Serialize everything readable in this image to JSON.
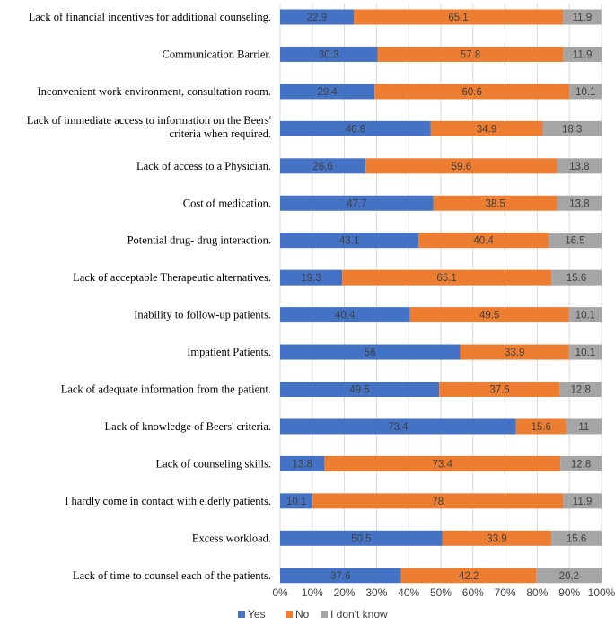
{
  "chart_data": {
    "type": "bar",
    "orientation": "horizontal",
    "stacked": "percent",
    "title": "",
    "xlabel": "",
    "ylabel": "",
    "xlim": [
      0,
      100
    ],
    "x_ticks": [
      "0%",
      "10%",
      "20%",
      "30%",
      "40%",
      "50%",
      "60%",
      "70%",
      "80%",
      "90%",
      "100%"
    ],
    "grid": true,
    "legend_position": "bottom",
    "categories": [
      "Lack of financial incentives for additional counseling.",
      "Communication Barrier.",
      "Inconvenient work environment, consultation room.",
      "Lack of immediate access to information on the Beers' criteria when required.",
      "Lack of access to a Physician.",
      "Cost of medication.",
      "Potential drug- drug interaction.",
      "Lack of acceptable Therapeutic alternatives.",
      "Inability to follow-up patients.",
      "Impatient Patients.",
      "Lack of adequate information from the patient.",
      "Lack of knowledge of Beers' criteria.",
      "Lack of counseling skills.",
      "I hardly come in contact with elderly patients.",
      "Excess workload.",
      "Lack of time to counsel each of the patients."
    ],
    "category_lines": [
      [
        "Lack of financial incentives for additional counseling."
      ],
      [
        "Communication Barrier."
      ],
      [
        "Inconvenient work environment, consultation room."
      ],
      [
        "Lack of immediate access to information on the Beers'",
        "criteria when required."
      ],
      [
        "Lack of access to a Physician."
      ],
      [
        "Cost of medication."
      ],
      [
        "Potential drug- drug interaction."
      ],
      [
        "Lack of acceptable Therapeutic alternatives."
      ],
      [
        "Inability to follow-up patients."
      ],
      [
        "Impatient Patients."
      ],
      [
        "Lack of adequate information from the patient."
      ],
      [
        "Lack of knowledge of Beers' criteria."
      ],
      [
        "Lack of counseling skills."
      ],
      [
        "I hardly come in contact with elderly patients."
      ],
      [
        "Excess workload."
      ],
      [
        "Lack of time to counsel each of the patients."
      ]
    ],
    "series": [
      {
        "name": "Yes",
        "color": "#4472C4",
        "values": [
          22.9,
          30.3,
          29.4,
          46.8,
          26.6,
          47.7,
          43.1,
          19.3,
          40.4,
          56,
          49.5,
          73.4,
          13.8,
          10.1,
          50.5,
          37.6
        ]
      },
      {
        "name": "No",
        "color": "#ED7D31",
        "values": [
          65.1,
          57.8,
          60.6,
          34.9,
          59.6,
          38.5,
          40.4,
          65.1,
          49.5,
          33.9,
          37.6,
          15.6,
          73.4,
          78,
          33.9,
          42.2
        ]
      },
      {
        "name": "I don't know",
        "color": "#A5A5A5",
        "values": [
          11.9,
          11.9,
          10.1,
          18.3,
          13.8,
          13.8,
          16.5,
          15.6,
          10.1,
          10.1,
          12.8,
          11,
          12.8,
          11.9,
          15.6,
          20.2
        ]
      }
    ]
  }
}
